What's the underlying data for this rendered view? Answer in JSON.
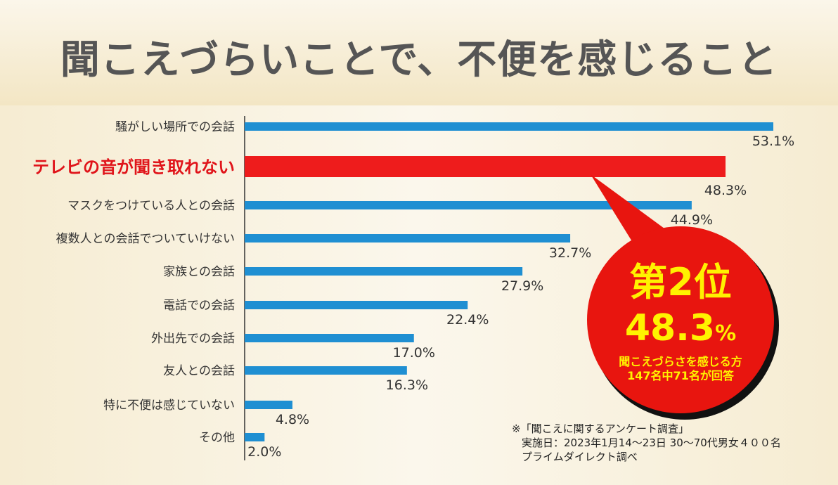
{
  "title": "聞こえづらいことで、不便を感じること",
  "chart_data": {
    "type": "bar",
    "orientation": "horizontal",
    "title": "聞こえづらいことで、不便を感じること",
    "categories": [
      "騒がしい場所での会話",
      "テレビの音が聞き取れない",
      "マスクをつけている人との会話",
      "複数人との会話でついていけない",
      "家族との会話",
      "電話での会話",
      "外出先での会話",
      "友人との会話",
      "特に不便は感じていない",
      "その他"
    ],
    "values": [
      53.1,
      48.3,
      44.9,
      32.7,
      27.9,
      22.4,
      17.0,
      16.3,
      4.8,
      2.0
    ],
    "value_labels": [
      "53.1%",
      "48.3%",
      "44.9%",
      "32.7%",
      "27.9%",
      "22.4%",
      "17.0%",
      "16.3%",
      "4.8%",
      "2.0%"
    ],
    "highlight_index": 1,
    "unit": "%",
    "xlim": [
      0,
      55
    ],
    "colors": {
      "bar": "#1f8fd2",
      "highlight": "#ee1c1c",
      "callout": "#e8150f",
      "callout_text": "#fff200"
    }
  },
  "callout": {
    "rank": "第2位",
    "value": "48.3",
    "unit": "%",
    "line1": "聞こえづらさを感じる方",
    "line2": "147名中71名が回答"
  },
  "footnote": {
    "line1": "※「聞こえに関するアンケート調査」",
    "line2": "実施日：2023年1月14〜23日 30〜70代男女４００名",
    "line3": "プライムダイレクト調べ"
  }
}
